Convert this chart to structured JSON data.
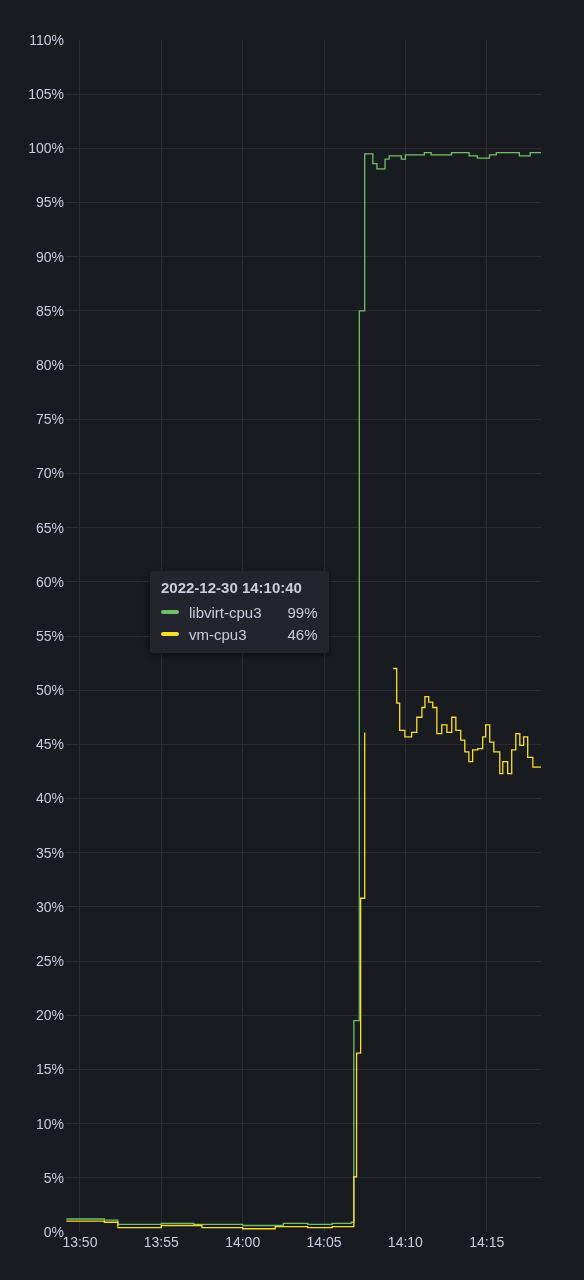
{
  "chart_data": {
    "type": "step",
    "ylim": [
      0,
      110
    ],
    "yticks": [
      {
        "value": 0,
        "label": "0%"
      },
      {
        "value": 5,
        "label": "5%"
      },
      {
        "value": 10,
        "label": "10%"
      },
      {
        "value": 15,
        "label": "15%"
      },
      {
        "value": 20,
        "label": "20%"
      },
      {
        "value": 25,
        "label": "25%"
      },
      {
        "value": 30,
        "label": "30%"
      },
      {
        "value": 35,
        "label": "35%"
      },
      {
        "value": 40,
        "label": "40%"
      },
      {
        "value": 45,
        "label": "45%"
      },
      {
        "value": 50,
        "label": "50%"
      },
      {
        "value": 55,
        "label": "55%"
      },
      {
        "value": 60,
        "label": "60%"
      },
      {
        "value": 65,
        "label": "65%"
      },
      {
        "value": 70,
        "label": "70%"
      },
      {
        "value": 75,
        "label": "75%"
      },
      {
        "value": 80,
        "label": "80%"
      },
      {
        "value": 85,
        "label": "85%"
      },
      {
        "value": 90,
        "label": "90%"
      },
      {
        "value": 95,
        "label": "95%"
      },
      {
        "value": 100,
        "label": "100%"
      },
      {
        "value": 105,
        "label": "105%"
      },
      {
        "value": 110,
        "label": "110%"
      }
    ],
    "xlim": [
      "2022-12-30T13:49:05",
      "2022-12-30T14:18:20"
    ],
    "xticks": [
      {
        "value": "2022-12-30T13:50",
        "label": "13:50"
      },
      {
        "value": "2022-12-30T13:55",
        "label": "13:55"
      },
      {
        "value": "2022-12-30T14:00",
        "label": "14:00"
      },
      {
        "value": "2022-12-30T14:05",
        "label": "14:05"
      },
      {
        "value": "2022-12-30T14:10",
        "label": "14:10"
      },
      {
        "value": "2022-12-30T14:15",
        "label": "14:15"
      }
    ],
    "grid": true,
    "legend": "center left",
    "legend_title": "2022-12-30 14:10:40",
    "annotations": [
      "99%",
      "46%"
    ],
    "series": [
      {
        "name": "libvirt-cpu3",
        "color": "#73bf69",
        "x": [
          "2022-12-30T13:49:10",
          "2022-12-30T13:51:30",
          "2022-12-30T13:52:20",
          "2022-12-30T13:55:00",
          "2022-12-30T13:57:00",
          "2022-12-30T14:00:00",
          "2022-12-30T14:02:30",
          "2022-12-30T14:04:00",
          "2022-12-30T14:05:30",
          "2022-12-30T14:06:40",
          "2022-12-30T14:06:50",
          "2022-12-30T14:07:10",
          "2022-12-30T14:07:30",
          "2022-12-30T14:08:00",
          "2022-12-30T14:08:15",
          "2022-12-30T14:08:45",
          "2022-12-30T14:09:00",
          "2022-12-30T14:09:45",
          "2022-12-30T14:10:00",
          "2022-12-30T14:11:10",
          "2022-12-30T14:11:35",
          "2022-12-30T14:12:50",
          "2022-12-30T14:13:55",
          "2022-12-30T14:14:25",
          "2022-12-30T14:15:10",
          "2022-12-30T14:15:35",
          "2022-12-30T14:17:00",
          "2022-12-30T14:17:40",
          "2022-12-30T14:18:20"
        ],
        "values": [
          1.2,
          1.1,
          0.7,
          0.8,
          0.7,
          0.6,
          0.8,
          0.7,
          0.8,
          0.9,
          19.5,
          85,
          99.5,
          98.6,
          98.1,
          99,
          99.3,
          99,
          99.4,
          99.6,
          99.4,
          99.6,
          99.3,
          99.1,
          99.4,
          99.6,
          99.3,
          99.6,
          99.6
        ]
      },
      {
        "name": "vm-cpu3",
        "color": "#fade2a",
        "x": [
          "2022-12-30T13:49:10",
          "2022-12-30T13:51:30",
          "2022-12-30T13:52:20",
          "2022-12-30T13:55:00",
          "2022-12-30T13:57:30",
          "2022-12-30T14:00:00",
          "2022-12-30T14:02:00",
          "2022-12-30T14:04:00",
          "2022-12-30T14:05:30",
          "2022-12-30T14:06:50",
          "2022-12-30T14:07:00",
          "2022-12-30T14:07:15",
          "2022-12-30T14:07:30",
          "2022-12-30T14:07:45",
          "2022-12-30T14:09:15",
          "2022-12-30T14:09:28",
          "2022-12-30T14:09:39",
          "2022-12-30T14:09:58",
          "2022-12-30T14:10:23",
          "2022-12-30T14:10:42",
          "2022-12-30T14:11:01",
          "2022-12-30T14:11:12",
          "2022-12-30T14:11:26",
          "2022-12-30T14:11:41",
          "2022-12-30T14:11:56",
          "2022-12-30T14:12:14",
          "2022-12-30T14:12:33",
          "2022-12-30T14:12:51",
          "2022-12-30T14:13:06",
          "2022-12-30T14:13:24",
          "2022-12-30T14:13:39",
          "2022-12-30T14:13:54",
          "2022-12-30T14:14:08",
          "2022-12-30T14:14:27",
          "2022-12-30T14:14:45",
          "2022-12-30T14:14:56",
          "2022-12-30T14:15:11",
          "2022-12-30T14:15:26",
          "2022-12-30T14:15:48",
          "2022-12-30T14:15:59",
          "2022-12-30T14:16:17",
          "2022-12-30T14:16:32",
          "2022-12-30T14:16:47",
          "2022-12-30T14:17:02",
          "2022-12-30T14:17:16",
          "2022-12-30T14:17:31",
          "2022-12-30T14:17:50",
          "2022-12-30T14:18:20"
        ],
        "values": [
          1.0,
          0.9,
          0.4,
          0.6,
          0.4,
          0.3,
          0.5,
          0.4,
          0.5,
          5.1,
          16.5,
          30.8,
          46.1,
          null,
          52,
          48.8,
          46.3,
          45.7,
          46.1,
          47.5,
          48.4,
          49.4,
          48.9,
          48.4,
          46,
          46.8,
          46.1,
          47.5,
          46.3,
          45.4,
          44.3,
          43.4,
          44.5,
          44.6,
          45.7,
          46.8,
          45.2,
          44.3,
          42.3,
          43.4,
          42.3,
          44.5,
          46,
          44.9,
          45.7,
          43.8,
          42.9,
          42.9
        ]
      }
    ]
  }
}
